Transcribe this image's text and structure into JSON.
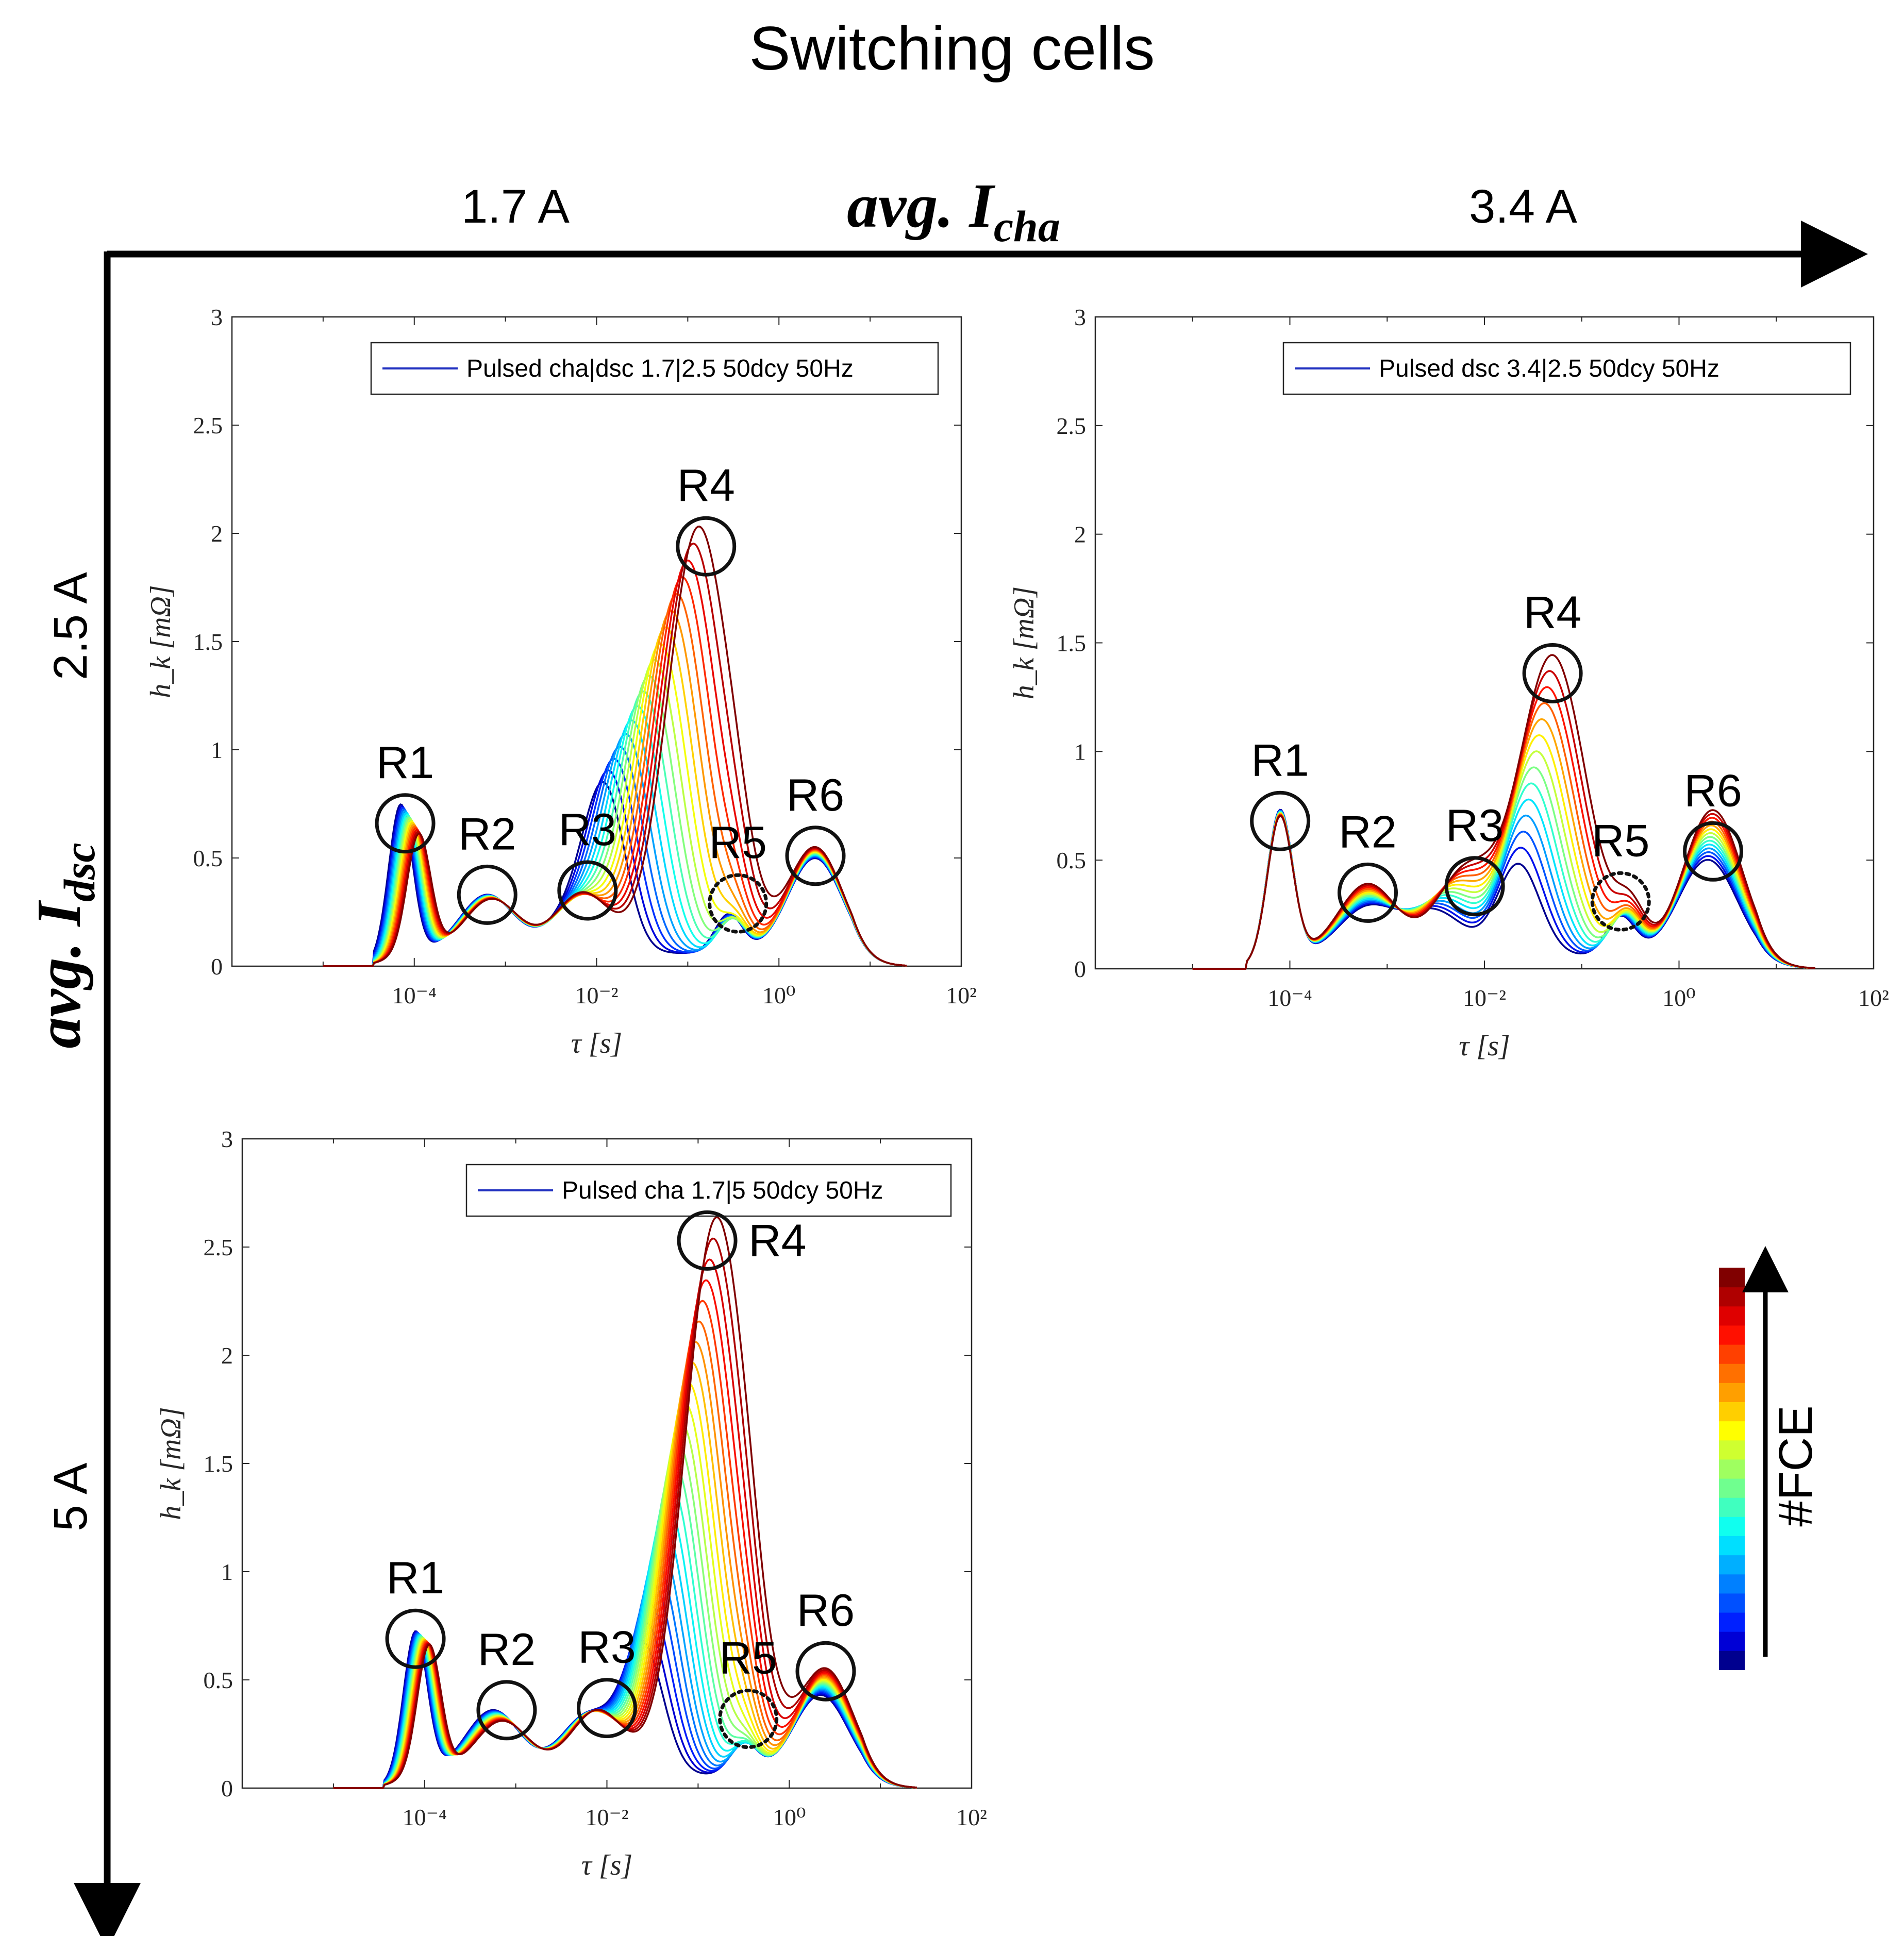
{
  "figure": {
    "title": "Switching cells",
    "x_axis_label": "avg. I",
    "x_axis_sub": "cha",
    "y_axis_label": "avg. I",
    "y_axis_sub": "dsc",
    "col_labels": [
      "1.7 A",
      "3.4 A"
    ],
    "row_labels": [
      "2.5 A",
      "5 A"
    ],
    "colorbar_label": "#FCE",
    "colorbar_colors": [
      "#00008f",
      "#0000d6",
      "#0020ff",
      "#0050ff",
      "#0080ff",
      "#00afff",
      "#00dfff",
      "#10ffef",
      "#40ffbf",
      "#70ff8f",
      "#9fff60",
      "#cfff30",
      "#ffff00",
      "#ffcf00",
      "#ff9f00",
      "#ff7000",
      "#ff4000",
      "#ff1000",
      "#df0000",
      "#af0000",
      "#800000"
    ]
  },
  "chart_data": [
    {
      "type": "line",
      "id": "top-left",
      "legend": "Pulsed cha|dsc 1.7|2.5 50dcy 50Hz",
      "xlabel": "τ [s]",
      "ylabel": "h_k [mΩ]",
      "xscale": "log",
      "xlim_log10": [
        -6,
        2
      ],
      "ylim": [
        0,
        3
      ],
      "yticks": [
        "0",
        "0.5",
        "1",
        "1.5",
        "2",
        "2.5",
        "3"
      ],
      "xticks": [
        "10⁻⁴",
        "10⁻²",
        "10⁰",
        "10²"
      ],
      "n_curves": 18,
      "peaks_start": {
        "R1": {
          "log_tau": -4.15,
          "h": 0.7
        },
        "R2": {
          "log_tau": -3.2,
          "h": 0.27
        },
        "R3": {
          "log_tau": -2.2,
          "h": 0.22
        },
        "R4": {
          "log_tau": -1.9,
          "h": 0.65
        },
        "R5": {
          "log_tau": -0.55,
          "h": 0.18
        },
        "R6": {
          "log_tau": 0.4,
          "h": 0.45
        }
      },
      "peaks_end": {
        "R1": {
          "log_tau": -3.95,
          "h": 0.55
        },
        "R2": {
          "log_tau": -3.15,
          "h": 0.25
        },
        "R3": {
          "log_tau": -2.15,
          "h": 0.28
        },
        "R4": {
          "log_tau": -0.88,
          "h": 1.97
        },
        "R5": {
          "log_tau": -0.45,
          "h": 0.12
        },
        "R6": {
          "log_tau": 0.4,
          "h": 0.5
        }
      },
      "annotations": [
        {
          "text": "R1",
          "log_tau": -4.1,
          "h": 0.66,
          "dashed": false
        },
        {
          "text": "R2",
          "log_tau": -3.2,
          "h": 0.33,
          "dashed": false
        },
        {
          "text": "R3",
          "log_tau": -2.1,
          "h": 0.35,
          "dashed": false
        },
        {
          "text": "R4",
          "log_tau": -0.8,
          "h": 1.94,
          "dashed": false
        },
        {
          "text": "R5",
          "log_tau": -0.45,
          "h": 0.29,
          "dashed": true
        },
        {
          "text": "R6",
          "log_tau": 0.4,
          "h": 0.51,
          "dashed": false
        }
      ]
    },
    {
      "type": "line",
      "id": "top-right",
      "legend": "Pulsed dsc 3.4|2.5 50dcy 50Hz",
      "xlabel": "τ [s]",
      "ylabel": "h_k [mΩ]",
      "xscale": "log",
      "xlim_log10": [
        -6,
        2
      ],
      "ylim": [
        0,
        3
      ],
      "yticks": [
        "0",
        "0.5",
        "1",
        "1.5",
        "2",
        "2.5",
        "3"
      ],
      "xticks": [
        "10⁻⁴",
        "10⁻²",
        "10⁰",
        "10²"
      ],
      "n_curves": 14,
      "peaks_start": {
        "R1": {
          "log_tau": -4.1,
          "h": 0.68
        },
        "R2": {
          "log_tau": -3.2,
          "h": 0.22
        },
        "R3": {
          "log_tau": -2.5,
          "h": 0.2
        },
        "R4": {
          "log_tau": -1.65,
          "h": 0.42
        },
        "R5": {
          "log_tau": -0.6,
          "h": 0.18
        },
        "R6": {
          "log_tau": 0.3,
          "h": 0.45
        }
      },
      "peaks_end": {
        "R1": {
          "log_tau": -4.1,
          "h": 0.65
        },
        "R2": {
          "log_tau": -3.2,
          "h": 0.33
        },
        "R3": {
          "log_tau": -2.2,
          "h": 0.38
        },
        "R4": {
          "log_tau": -1.3,
          "h": 1.38
        },
        "R5": {
          "log_tau": -0.5,
          "h": 0.2
        },
        "R6": {
          "log_tau": 0.35,
          "h": 0.68
        }
      },
      "annotations": [
        {
          "text": "R1",
          "log_tau": -4.1,
          "h": 0.68,
          "dashed": false
        },
        {
          "text": "R2",
          "log_tau": -3.2,
          "h": 0.35,
          "dashed": false
        },
        {
          "text": "R3",
          "log_tau": -2.1,
          "h": 0.38,
          "dashed": false
        },
        {
          "text": "R4",
          "log_tau": -1.3,
          "h": 1.36,
          "dashed": false
        },
        {
          "text": "R5",
          "log_tau": -0.6,
          "h": 0.31,
          "dashed": true
        },
        {
          "text": "R6",
          "log_tau": 0.35,
          "h": 0.54,
          "dashed": false
        }
      ]
    },
    {
      "type": "line",
      "id": "bottom-left",
      "legend": "Pulsed cha 1.7|5 50dcy 50Hz",
      "xlabel": "τ [s]",
      "ylabel": "h_k [mΩ]",
      "xscale": "log",
      "xlim_log10": [
        -6,
        2
      ],
      "ylim": [
        0,
        3
      ],
      "yticks": [
        "0",
        "0.5",
        "1",
        "1.5",
        "2",
        "2.5",
        "3"
      ],
      "xticks": [
        "10⁻⁴",
        "10⁻²",
        "10⁰",
        "10²"
      ],
      "n_curves": 22,
      "peaks_start": {
        "R1": {
          "log_tau": -4.1,
          "h": 0.67
        },
        "R2": {
          "log_tau": -3.25,
          "h": 0.3
        },
        "R3": {
          "log_tau": -2.2,
          "h": 0.28
        },
        "R4": {
          "log_tau": -1.6,
          "h": 0.58
        },
        "R5": {
          "log_tau": -0.5,
          "h": 0.15
        },
        "R6": {
          "log_tau": 0.35,
          "h": 0.38
        }
      },
      "peaks_end": {
        "R1": {
          "log_tau": -3.95,
          "h": 0.6
        },
        "R2": {
          "log_tau": -3.15,
          "h": 0.25
        },
        "R3": {
          "log_tau": -2.1,
          "h": 0.3
        },
        "R4": {
          "log_tau": -0.8,
          "h": 2.57
        },
        "R5": {
          "log_tau": -0.45,
          "h": 0.12
        },
        "R6": {
          "log_tau": 0.4,
          "h": 0.5
        }
      },
      "annotations": [
        {
          "text": "R1",
          "log_tau": -4.1,
          "h": 0.69,
          "dashed": false
        },
        {
          "text": "R2",
          "log_tau": -3.1,
          "h": 0.36,
          "dashed": false
        },
        {
          "text": "R3",
          "log_tau": -2.0,
          "h": 0.37,
          "dashed": false
        },
        {
          "text": "R4",
          "log_tau": -0.9,
          "h": 2.53,
          "dashed": false
        },
        {
          "text": "R5",
          "log_tau": -0.45,
          "h": 0.32,
          "dashed": true
        },
        {
          "text": "R6",
          "log_tau": 0.4,
          "h": 0.54,
          "dashed": false
        }
      ]
    }
  ]
}
